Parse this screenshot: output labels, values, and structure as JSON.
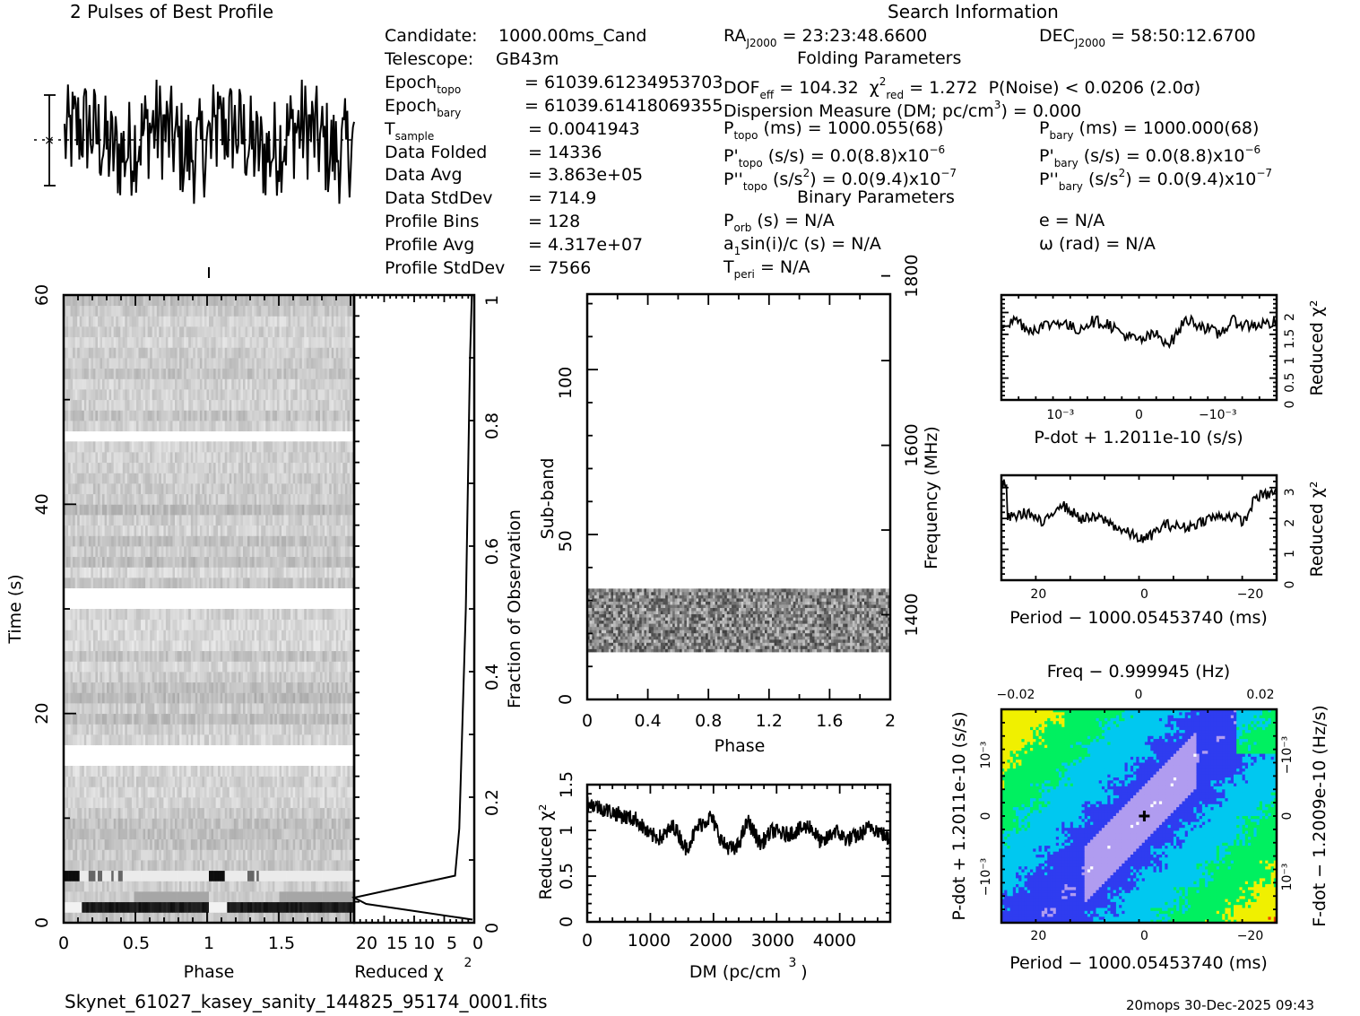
{
  "profile_title": "2 Pulses of Best Profile",
  "info_left": [
    {
      "label": "Candidate:",
      "value": "1000.00ms_Cand"
    },
    {
      "label": "Telescope:",
      "value": "GB43m"
    },
    {
      "label": "Epoch",
      "sub": "topo",
      "value": "= 61039.61234953703"
    },
    {
      "label": "Epoch",
      "sub": "bary",
      "value": "= 61039.61418069355"
    },
    {
      "label": "T",
      "sub": "sample",
      "value": "=  0.0041943"
    },
    {
      "label": "Data Folded",
      "value": "=  14336"
    },
    {
      "label": "Data Avg",
      "value": "=  3.863e+05"
    },
    {
      "label": "Data StdDev",
      "value": "=  714.9"
    },
    {
      "label": "Profile Bins",
      "value": "=  128"
    },
    {
      "label": "Profile Avg",
      "value": "=  4.317e+07"
    },
    {
      "label": "Profile StdDev",
      "value": "=  7566"
    }
  ],
  "search_info": {
    "title": "Search Information",
    "ra": "= 23:23:48.6600",
    "ra_label": "RA",
    "ra_sub": "J2000",
    "dec": "= 58:50:12.6700",
    "dec_label": "DEC",
    "dec_sub": "J2000",
    "folding_title": "Folding Parameters",
    "dof_label": "DOF",
    "dof_sub": "eff",
    "dof": "= 104.32",
    "chi_label": "χ",
    "chi_sup": "2",
    "chi_sub": "red",
    "chi": "= 1.272",
    "pnoise": "P(Noise) < 0.0206   (2.0σ)",
    "dm_line": "Dispersion Measure (DM; pc/cm",
    "dm_sup": "3",
    "dm_value": ") = 0.000",
    "ptopo_label": "P",
    "ptopo_sub": "topo",
    "ptopo": "(ms) =  1000.055(68)",
    "pbary_label": "P",
    "pbary_sub": "bary",
    "pbary": "(ms) =  1000.000(68)",
    "pdtopo_label": "P'",
    "pdtopo_sub": "topo",
    "pdtopo": "(s/s) = 0.0(8.8)x10",
    "pdtopo_exp": "−6",
    "pdbary_label": "P'",
    "pdbary_sub": "bary",
    "pdbary": "(s/s) = 0.0(8.8)x10",
    "pdbary_exp": "−6",
    "pddtopo_label": "P''",
    "pddtopo_sub": "topo",
    "pddtopo_a": "(s/s",
    "pddtopo_sup": "2",
    "pddtopo_b": ") = 0.0(9.4)x10",
    "pddtopo_exp": "−7",
    "pddbary_label": "P''",
    "pddbary_sub": "bary",
    "pddbary_a": "(s/s",
    "pddbary_sup": "2",
    "pddbary_b": ") = 0.0(9.4)x10",
    "pddbary_exp": "−7",
    "binary_title": "Binary Parameters",
    "porb_label": "P",
    "porb_sub": "orb",
    "porb": "(s) = N/A",
    "ecc": "e = N/A",
    "a1_label": "a",
    "a1_sub": "1",
    "a1": "sin(i)/c (s) = N/A",
    "omega": "ω (rad) = N/A",
    "tperi_label": "T",
    "tperi_sub": "peri",
    "tperi": "= N/A"
  },
  "footer": {
    "filename": "Skynet_61027_kasey_sanity_144825_95174_0001.fits",
    "stamp": "20mops 30-Dec-2025 09:43"
  },
  "chart_data": [
    {
      "id": "profile",
      "type": "line",
      "title": "2 Pulses of Best Profile",
      "xlabel": "",
      "ylabel": "",
      "note": "noisy profile, 128 bins repeated twice, with error bar at left"
    },
    {
      "id": "time_phase",
      "type": "heatmap",
      "xlabel": "Phase",
      "ylabel": "Time (s)",
      "xlim": [
        0,
        2
      ],
      "ylim": [
        0,
        60
      ],
      "xticks": [
        "0",
        "0.5",
        "1",
        "1.5"
      ],
      "yticks": [
        "0",
        "20",
        "40",
        "60"
      ],
      "masked_time_s": [
        15.8,
        31.2,
        46.7
      ],
      "dark_rows_time_s": [
        1.3,
        4.3
      ]
    },
    {
      "id": "chi_vs_time",
      "type": "line",
      "xlabel": "Reduced χ²",
      "ylabel": "Fraction of Observation",
      "xlim": [
        20,
        0
      ],
      "ylim": [
        0,
        1
      ],
      "xticks": [
        "20",
        "15",
        "10",
        "5",
        "0"
      ],
      "yticks": [
        "0",
        "0.2",
        "0.4",
        "0.6",
        "0.8",
        "1"
      ],
      "x": [
        0.3,
        18.0,
        20.0,
        3.2,
        2.5,
        1.4,
        0.7,
        0.4
      ],
      "y": [
        0.005,
        0.03,
        0.04,
        0.075,
        0.15,
        0.5,
        0.9,
        1.0
      ]
    },
    {
      "id": "subband_phase",
      "type": "heatmap",
      "xlabel": "Phase",
      "ylabel": "Sub-band",
      "y2label": "Frequency (MHz)",
      "xlim": [
        0,
        2
      ],
      "ylim": [
        0,
        128
      ],
      "y2lim": [
        1300,
        1800
      ],
      "xticks": [
        "0",
        "0.4",
        "0.8",
        "1.2",
        "1.6",
        "2"
      ],
      "yticks": [
        "0",
        "50",
        "100"
      ],
      "y2ticks": [
        "1400",
        "1600",
        "1800"
      ],
      "active_subbands": [
        15,
        35
      ]
    },
    {
      "id": "dm_curve",
      "type": "line",
      "xlabel": "DM (pc/cm³)",
      "ylabel": "Reduced χ²",
      "xlim": [
        0,
        4900
      ],
      "ylim": [
        0,
        1.5
      ],
      "xticks": [
        "0",
        "1000",
        "2000",
        "3000",
        "4000"
      ],
      "yticks": [
        "0",
        "0.5",
        "1",
        "1.5"
      ],
      "x": [
        0,
        200,
        400,
        600,
        800,
        1000,
        1200,
        1400,
        1600,
        1800,
        2000,
        2200,
        2400,
        2600,
        2800,
        3000,
        3200,
        3400,
        3600,
        3800,
        4000,
        4200,
        4400,
        4600,
        4800,
        4900
      ],
      "y": [
        1.3,
        1.25,
        1.2,
        1.15,
        1.12,
        0.95,
        0.92,
        1.05,
        0.8,
        1.05,
        1.15,
        0.85,
        0.78,
        1.1,
        0.85,
        1.0,
        0.95,
        1.0,
        1.05,
        0.85,
        1.0,
        0.9,
        0.95,
        1.05,
        0.95,
        0.88
      ]
    },
    {
      "id": "pdot_curve",
      "type": "line",
      "xlabel": "P-dot + 1.2011e-10 (s/s)",
      "ylabel": "Reduced χ²",
      "xticks": [
        "10⁻³",
        "0",
        "−10⁻³"
      ],
      "yticks": [
        "0",
        "0.5",
        "1",
        "1.5",
        "2"
      ],
      "ylim": [
        0,
        2.4
      ],
      "x": [
        1.6,
        1.4,
        1.2,
        1.0,
        0.8,
        0.6,
        0.4,
        0.2,
        0,
        -0.2,
        -0.4,
        -0.6,
        -0.8,
        -1.0,
        -1.2,
        -1.4,
        -1.6
      ],
      "y": [
        1.9,
        1.6,
        1.7,
        1.8,
        1.6,
        1.8,
        1.75,
        1.5,
        1.35,
        1.5,
        1.3,
        1.85,
        1.7,
        1.5,
        1.8,
        1.7,
        1.75
      ]
    },
    {
      "id": "period_curve",
      "type": "line",
      "xlabel": "Period − 1000.05453740 (ms)",
      "ylabel": "Reduced χ²",
      "xticks": [
        "20",
        "0",
        "−20"
      ],
      "yticks": [
        "0",
        "1",
        "2",
        "3"
      ],
      "ylim": [
        0,
        3.4
      ],
      "x": [
        26,
        22,
        19,
        16,
        12,
        8,
        4,
        0,
        -4,
        -8,
        -12,
        -16,
        -19,
        -21,
        -24,
        -26
      ],
      "y": [
        2.0,
        2.2,
        1.8,
        2.5,
        2.0,
        2.0,
        1.6,
        1.3,
        1.8,
        1.7,
        2.0,
        2.1,
        1.9,
        2.7,
        2.8,
        3.1
      ]
    },
    {
      "id": "p_pdot_plane",
      "type": "heatmap",
      "title": "Freq − 0.999945 (Hz)",
      "xlabel": "Period − 1000.05453740 (ms)",
      "ylabel": "P-dot + 1.2011e-10 (s/s)",
      "y2label": "F-dot − 1.2009e-10 (Hz/s)",
      "xticks": [
        "20",
        "0",
        "−20"
      ],
      "x2ticks": [
        "−0.02",
        "0",
        "0.02"
      ],
      "yticks": [
        "10⁻³",
        "0",
        "−10⁻³"
      ],
      "y2ticks": [
        "−10⁻³",
        "0",
        "10⁻³"
      ],
      "best": {
        "period": 0,
        "pdot": 0
      },
      "colormap": [
        "#ffffff",
        "#b09cf0",
        "#2f3cf0",
        "#00c8f0",
        "#00f060",
        "#f0f000",
        "#f04000"
      ]
    }
  ]
}
